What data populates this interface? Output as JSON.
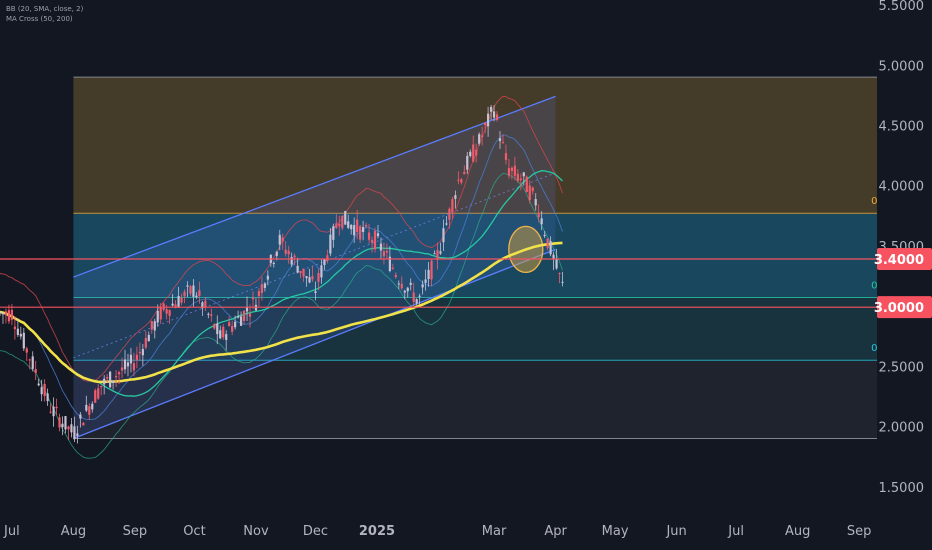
{
  "indicators": {
    "bb_label": "BB (20, SMA, close, 2)",
    "ma_label": "MA Cross (50, 200)"
  },
  "colors": {
    "background": "#131722",
    "up_candle": "#c7c1d4",
    "down_candle": "#f25b6b",
    "fib_upper_zone": "#6f5a2f",
    "fib_mid_zone": "#1f6f8f",
    "fib_low_zone": "#1d4a55",
    "fib_base_zone": "#2a2e39",
    "channel": "#5b7cff",
    "ma50": "#26c9a0",
    "ma200": "#f2e24a",
    "bb": "#d8474f",
    "level_price": "#f7525f"
  },
  "chart_data": {
    "type": "candlestick",
    "y_axis": {
      "ylim": [
        1.25,
        5.55
      ],
      "ticks": [
        {
          "value": 1.5,
          "label": "1.5000"
        },
        {
          "value": 2.0,
          "label": "2.0000"
        },
        {
          "value": 2.5,
          "label": "2.5000"
        },
        {
          "value": 3.0,
          "label": "3.0000"
        },
        {
          "value": 3.5,
          "label": "3.5000"
        },
        {
          "value": 4.0,
          "label": "4.0000"
        },
        {
          "value": 4.5,
          "label": "4.5000"
        },
        {
          "value": 5.0,
          "label": "5.0000"
        },
        {
          "value": 5.5,
          "label": "5.5000"
        }
      ]
    },
    "x_axis": {
      "labels": [
        {
          "label": "Jul",
          "day": 0,
          "bold": false
        },
        {
          "label": "Aug",
          "day": 31,
          "bold": false
        },
        {
          "label": "Sep",
          "day": 62,
          "bold": false
        },
        {
          "label": "Oct",
          "day": 92,
          "bold": false
        },
        {
          "label": "Nov",
          "day": 123,
          "bold": false
        },
        {
          "label": "Dec",
          "day": 153,
          "bold": false
        },
        {
          "label": "2025",
          "day": 184,
          "bold": true
        },
        {
          "label": "Mar",
          "day": 243,
          "bold": false
        },
        {
          "label": "Apr",
          "day": 274,
          "bold": false
        },
        {
          "label": "May",
          "day": 304,
          "bold": false
        },
        {
          "label": "Jun",
          "day": 335,
          "bold": false
        },
        {
          "label": "Jul",
          "day": 365,
          "bold": false
        },
        {
          "label": "Aug",
          "day": 396,
          "bold": false
        },
        {
          "label": "Sep",
          "day": 427,
          "bold": false
        }
      ]
    },
    "price_levels": [
      {
        "value": 3.4,
        "label": "3.4000"
      },
      {
        "value": 3.0,
        "label": "3.0000"
      }
    ],
    "fibonacci": {
      "start_day": 31,
      "end_day": 450,
      "levels": [
        {
          "ratio": "0",
          "value": 4.91,
          "label_color": "#9aa0ab"
        },
        {
          "ratio": "0.382",
          "value": 3.78,
          "label_color": "#f0a830"
        },
        {
          "ratio": "0.618",
          "value": 3.08,
          "label_color": "#26c9a0"
        },
        {
          "ratio": "0.786",
          "value": 2.56,
          "label_color": "#26c6da"
        },
        {
          "ratio": "1",
          "value": 1.91,
          "label_color": "#9aa0ab"
        }
      ]
    },
    "channel": {
      "lower_start": {
        "day": 31,
        "value": 1.91
      },
      "lower_end": {
        "day": 274,
        "value": 3.48
      },
      "upper_start": {
        "day": 31,
        "value": 3.25
      },
      "upper_end": {
        "day": 274,
        "value": 4.75
      }
    },
    "highlight_circle": {
      "day": 259,
      "value": 3.48
    },
    "ohlc_summary": [
      {
        "day": 0,
        "value": 2.95
      },
      {
        "day": 10,
        "value": 2.55
      },
      {
        "day": 20,
        "value": 2.15
      },
      {
        "day": 31,
        "value": 1.95
      },
      {
        "day": 45,
        "value": 2.35
      },
      {
        "day": 62,
        "value": 2.55
      },
      {
        "day": 75,
        "value": 2.95
      },
      {
        "day": 92,
        "value": 3.15
      },
      {
        "day": 105,
        "value": 2.75
      },
      {
        "day": 123,
        "value": 3.05
      },
      {
        "day": 135,
        "value": 3.55
      },
      {
        "day": 153,
        "value": 3.15
      },
      {
        "day": 165,
        "value": 3.75
      },
      {
        "day": 184,
        "value": 3.55
      },
      {
        "day": 195,
        "value": 3.25
      },
      {
        "day": 205,
        "value": 3.05
      },
      {
        "day": 215,
        "value": 3.45
      },
      {
        "day": 225,
        "value": 4.05
      },
      {
        "day": 235,
        "value": 4.35
      },
      {
        "day": 243,
        "value": 4.65
      },
      {
        "day": 250,
        "value": 4.15
      },
      {
        "day": 258,
        "value": 4.05
      },
      {
        "day": 265,
        "value": 3.85
      },
      {
        "day": 270,
        "value": 3.55
      },
      {
        "day": 274,
        "value": 3.35
      },
      {
        "day": 278,
        "value": 3.15
      }
    ]
  }
}
